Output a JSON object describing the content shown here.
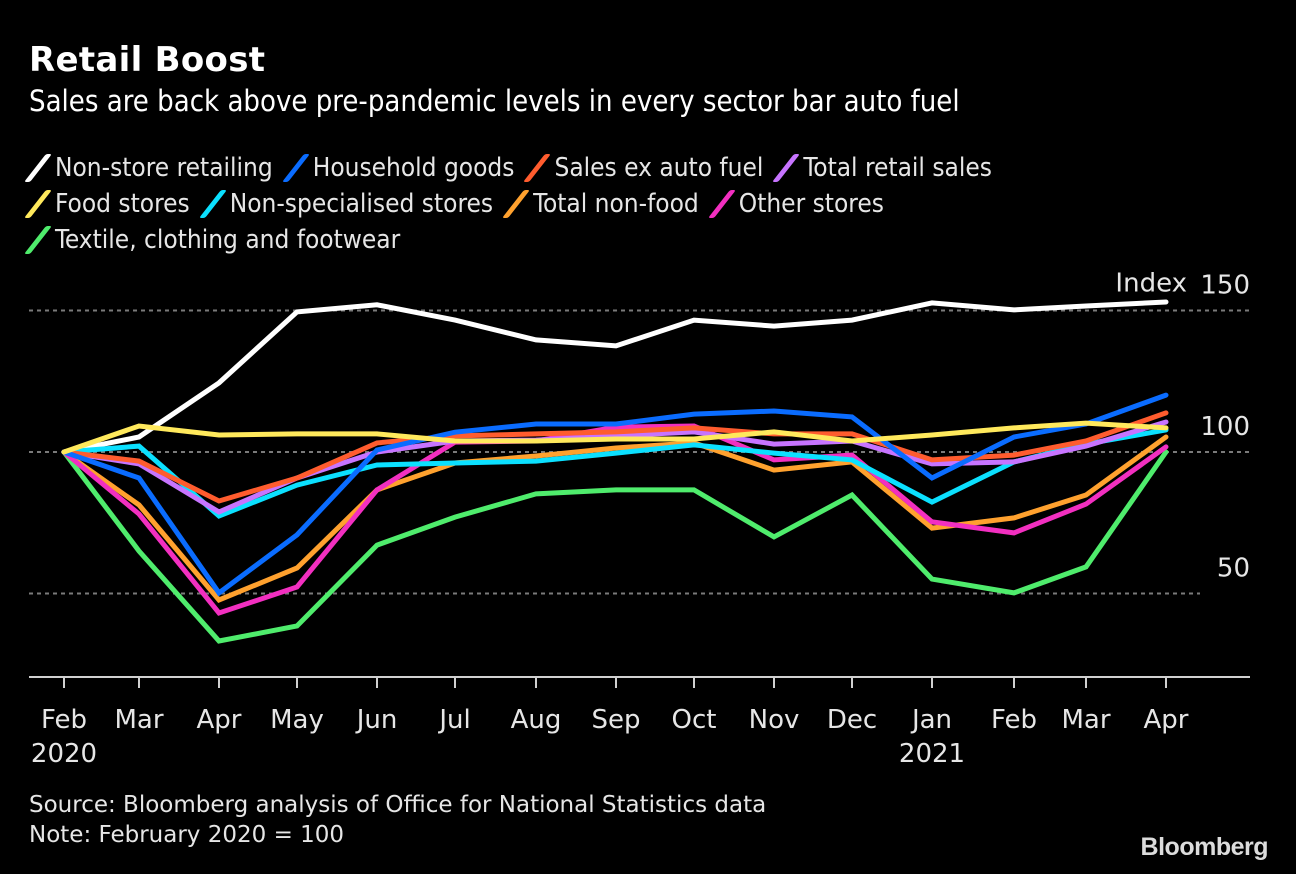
{
  "header": {
    "title": "Retail Boost",
    "subtitle": "Sales are back above pre-pandemic levels in every sector bar auto fuel"
  },
  "legend": {
    "rows": [
      [
        0,
        1,
        2,
        3
      ],
      [
        4,
        5,
        6,
        7
      ],
      [
        8
      ]
    ]
  },
  "footer": {
    "source": "Source: Bloomberg analysis of Office for National Statistics data",
    "note": "Note: February 2020 = 100",
    "logo": "Bloomberg"
  },
  "chart_data": {
    "type": "line",
    "title": "Retail Boost",
    "subtitle": "Sales are back above pre-pandemic levels in every sector bar auto fuel",
    "xlabel": "",
    "ylabel": "Index",
    "ylim": [
      20.5,
      160
    ],
    "yticks": [
      50,
      100,
      150
    ],
    "y_axis_label": "Index",
    "y_axis_position": "right",
    "grid": true,
    "legend_position": "top-left",
    "x": [
      "Feb",
      "Mar",
      "Apr",
      "May",
      "Jun",
      "Jul",
      "Aug",
      "Sep",
      "Oct",
      "Nov",
      "Dec",
      "Jan",
      "Feb",
      "Mar",
      "Apr"
    ],
    "x_year_labels": [
      {
        "index": 0,
        "label": "2020"
      },
      {
        "index": 11,
        "label": "2021"
      }
    ],
    "series": [
      {
        "name": "Non-store retailing",
        "color": "#ffffff",
        "values": [
          100,
          105.3,
          124.4,
          149.5,
          152,
          146.6,
          139.6,
          137.5,
          146.6,
          144.5,
          146.6,
          152.7,
          150.2,
          151.6,
          153
        ]
      },
      {
        "name": "Household goods",
        "color": "#0a6cff",
        "values": [
          100,
          90.8,
          50.2,
          70.7,
          100.7,
          107,
          109.9,
          109.9,
          113.4,
          114.5,
          112.4,
          90.8,
          105.3,
          109.9,
          120.1
        ]
      },
      {
        "name": "Sales ex auto fuel",
        "color": "#ff5c2e",
        "values": [
          100,
          96.8,
          82.7,
          90.8,
          103.2,
          105.7,
          106.4,
          107.1,
          108.5,
          106.4,
          106.4,
          97.2,
          98.9,
          103.9,
          113.8
        ]
      },
      {
        "name": "Total retail sales",
        "color": "#c774ff",
        "values": [
          100,
          95.8,
          78.8,
          90.8,
          100,
          103.9,
          104.2,
          105.7,
          107.1,
          102.8,
          103.9,
          95.8,
          96.5,
          102.1,
          110.6
        ]
      },
      {
        "name": "Food stores",
        "color": "#ffe95c",
        "values": [
          100,
          109.2,
          106,
          106.4,
          106.4,
          103.9,
          103.9,
          104.6,
          104.6,
          107.1,
          103.9,
          106,
          108.5,
          110.2,
          108.5
        ]
      },
      {
        "name": "Non-specialised stores",
        "color": "#0be0ff",
        "values": [
          100,
          102.1,
          77.4,
          88.3,
          95.4,
          96.1,
          96.8,
          99.6,
          102.5,
          99.6,
          97.2,
          82.3,
          96.5,
          102.8,
          107.8
        ]
      },
      {
        "name": "Total non-food",
        "color": "#ffa12e",
        "values": [
          100,
          81.3,
          47.7,
          59,
          86.6,
          96.1,
          98.6,
          101.4,
          103.2,
          93.6,
          96.5,
          73.1,
          76.7,
          84.8,
          105.3
        ]
      },
      {
        "name": "Other stores",
        "color": "#f22fc0",
        "values": [
          100,
          78.1,
          43.1,
          52.3,
          86.6,
          103.5,
          103.9,
          108.8,
          109.2,
          97.2,
          98.9,
          75.3,
          71.4,
          81.6,
          101.8
        ]
      },
      {
        "name": "Textile, clothing and footwear",
        "color": "#4fec6c",
        "values": [
          100,
          65,
          33.2,
          38.5,
          67.1,
          77,
          85.2,
          86.6,
          86.6,
          70,
          84.8,
          55.1,
          50.2,
          59.4,
          100
        ]
      }
    ],
    "source": "Source: Bloomberg analysis of Office for National Statistics data",
    "note": "Note: February 2020 = 100"
  }
}
